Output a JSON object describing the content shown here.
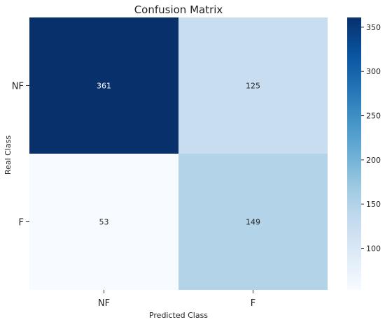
{
  "chart_data": {
    "type": "heatmap",
    "title": "Confusion Matrix",
    "xlabel": "Predicted Class",
    "ylabel": "Real Class",
    "x_categories": [
      "NF",
      "F"
    ],
    "y_categories": [
      "NF",
      "F"
    ],
    "values": [
      [
        361,
        125
      ],
      [
        53,
        149
      ]
    ],
    "colormap": "Blues",
    "colorbar": {
      "range": [
        53,
        361
      ],
      "ticks": [
        100,
        150,
        200,
        250,
        300,
        350
      ],
      "tick_labels": [
        "100",
        "150",
        "200",
        "250",
        "300",
        "350"
      ]
    },
    "grid": false
  }
}
